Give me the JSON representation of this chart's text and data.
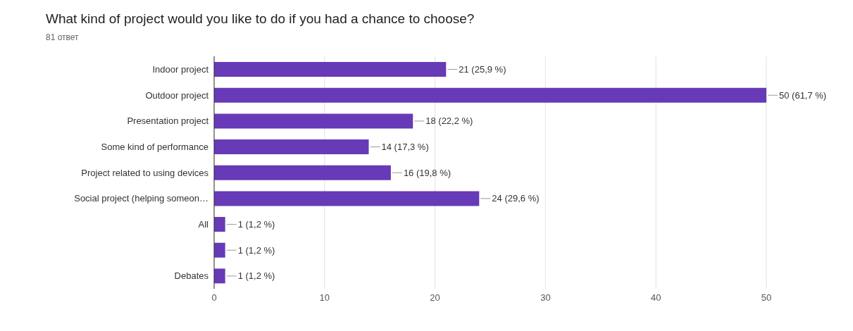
{
  "chart_data": {
    "type": "bar",
    "orientation": "horizontal",
    "title": "What kind of project would you like to do if you had a chance to choose?",
    "subtitle": "81 ответ",
    "categories": [
      "Indoor project",
      "Outdoor project",
      "Presentation project",
      "Some kind of performance",
      "Project related to using devices",
      "Social project (helping someon…",
      "All",
      null,
      "Debates"
    ],
    "values": [
      21,
      50,
      18,
      14,
      16,
      24,
      1,
      1,
      1
    ],
    "value_labels": [
      "21 (25,9 %)",
      "50 (61,7 %)",
      "18 (22,2 %)",
      "14 (17,3 %)",
      "16 (19,8 %)",
      "24 (29,6 %)",
      "1 (1,2 %)",
      "1 (1,2 %)",
      "1 (1,2 %)"
    ],
    "color": "#673ab7",
    "xlim": [
      0,
      50
    ],
    "xticks": [
      0,
      10,
      20,
      30,
      40,
      50
    ],
    "grid": "x",
    "legend": false
  }
}
